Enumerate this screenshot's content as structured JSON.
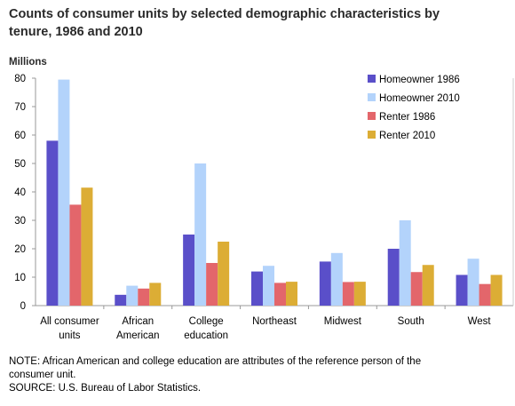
{
  "title": "Counts of consumer units by selected demographic characteristics by tenure, 1986 and 2010",
  "ylabel": "Millions",
  "note": "NOTE: African American and college education are attributes of the reference person of the consumer unit.",
  "source": "SOURCE: U.S. Bureau of Labor Statistics.",
  "chart_data": {
    "type": "bar",
    "title": "Counts of consumer units by selected demographic characteristics by tenure, 1986 and 2010",
    "ylabel": "Millions",
    "xlabel": "",
    "ylim": [
      0,
      80
    ],
    "yticks": [
      0,
      10,
      20,
      30,
      40,
      50,
      60,
      70,
      80
    ],
    "grid": false,
    "legend": "top-right",
    "categories": [
      "All consumer units",
      "African American",
      "College education",
      "Northeast",
      "Midwest",
      "South",
      "West"
    ],
    "category_lines": [
      [
        "All consumer",
        "units"
      ],
      [
        "African",
        "American"
      ],
      [
        "College",
        "education"
      ],
      [
        "Northeast"
      ],
      [
        "Midwest"
      ],
      [
        "South"
      ],
      [
        "West"
      ]
    ],
    "series": [
      {
        "name": "Homeowner 1986",
        "color": "#5a4fc9",
        "values": [
          58,
          3.8,
          25,
          12,
          15.5,
          20,
          10.8
        ]
      },
      {
        "name": "Homeowner 2010",
        "color": "#b3d3fb",
        "values": [
          79.5,
          7,
          50,
          14,
          18.5,
          30,
          16.5
        ]
      },
      {
        "name": "Renter 1986",
        "color": "#e3666b",
        "values": [
          35.5,
          6,
          15,
          8,
          8.3,
          11.8,
          7.6
        ]
      },
      {
        "name": "Renter 2010",
        "color": "#dcad35",
        "values": [
          41.5,
          8,
          22.5,
          8.4,
          8.4,
          14.3,
          10.8
        ]
      }
    ]
  }
}
